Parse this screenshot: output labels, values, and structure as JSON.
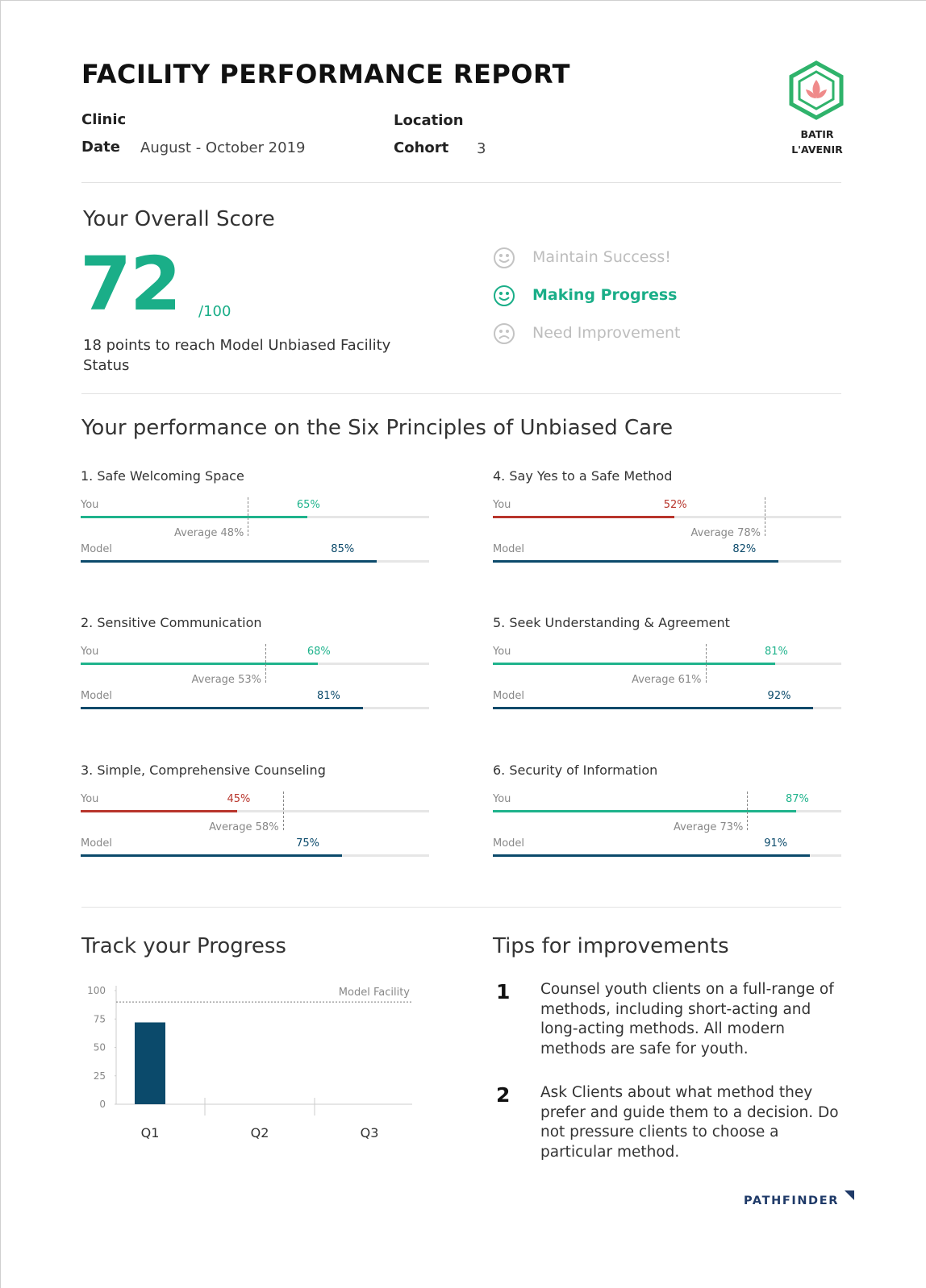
{
  "header": {
    "title": "FACILITY PERFORMANCE REPORT",
    "clinic_label": "Clinic",
    "date_label": "Date",
    "date": "August - October 2019",
    "location_label": "Location",
    "cohort_label": "Cohort",
    "cohort": 3,
    "logo_lines": [
      "BATIR",
      "L'AVENIR"
    ]
  },
  "overall": {
    "heading": "Your Overall Score",
    "score": 72,
    "max_label": "/100",
    "note": "18 points to reach Model Unbiased Facility Status",
    "statuses": [
      {
        "label": "Maintain Success!",
        "active": false
      },
      {
        "label": "Making Progress",
        "active": true
      },
      {
        "label": "Need Improvement",
        "active": false
      }
    ]
  },
  "principles": {
    "heading": "Your performance on the Six Principles of Unbiased Care",
    "you_label": "You",
    "model_label": "Model",
    "xlim": [
      0,
      100
    ],
    "items": [
      {
        "name": "1. Safe Welcoming Space",
        "you": 65,
        "you_text": "65%",
        "you_color": "#1fb38c",
        "average": 48,
        "average_text": "Average 48%",
        "model": 85,
        "model_text": "85%"
      },
      {
        "name": "2. Sensitive Communication",
        "you": 68,
        "you_text": "68%",
        "you_color": "#1fb38c",
        "average": 53,
        "average_text": "Average 53%",
        "model": 81,
        "model_text": "81%"
      },
      {
        "name": "3. Simple, Comprehensive Counseling",
        "you": 45,
        "you_text": "45%",
        "you_color": "#b8352c",
        "average": 58,
        "average_text": "Average 58%",
        "model": 75,
        "model_text": "75%"
      },
      {
        "name": "4. Say Yes to a Safe Method",
        "you": 52,
        "you_text": "52%",
        "you_color": "#b8352c",
        "average": 78,
        "average_text": "Average 78%",
        "model": 82,
        "model_text": "82%"
      },
      {
        "name": "5. Seek Understanding & Agreement",
        "you": 81,
        "you_text": "81%",
        "you_color": "#1fb38c",
        "average": 61,
        "average_text": "Average 61%",
        "model": 92,
        "model_text": "92%"
      },
      {
        "name": "6. Security of Information",
        "you": 87,
        "you_text": "87%",
        "you_color": "#1fb38c",
        "average": 73,
        "average_text": "Average 73%",
        "model": 91,
        "model_text": "91%"
      }
    ]
  },
  "progress_heading": "Track your Progress",
  "chart_data": {
    "type": "bar",
    "categories": [
      "Q1",
      "Q2",
      "Q3"
    ],
    "values": [
      72,
      null,
      null
    ],
    "color": "#0b4a6b",
    "ylim": [
      0,
      100
    ],
    "yticks": [
      0,
      25,
      50,
      75,
      100
    ],
    "model_line": {
      "label": "Model Facility",
      "value": 90
    }
  },
  "tips": {
    "heading": "Tips for improvements",
    "items": [
      {
        "number": 1,
        "text": "Counsel youth clients on a full-range of methods, including short-acting and long-acting methods. All modern methods are safe for youth."
      },
      {
        "number": 2,
        "text": "Ask Clients about what method they prefer and guide them to a decision. Do not pressure clients to choose a particular method."
      }
    ]
  },
  "footer": {
    "brand": "PATHFINDER"
  }
}
